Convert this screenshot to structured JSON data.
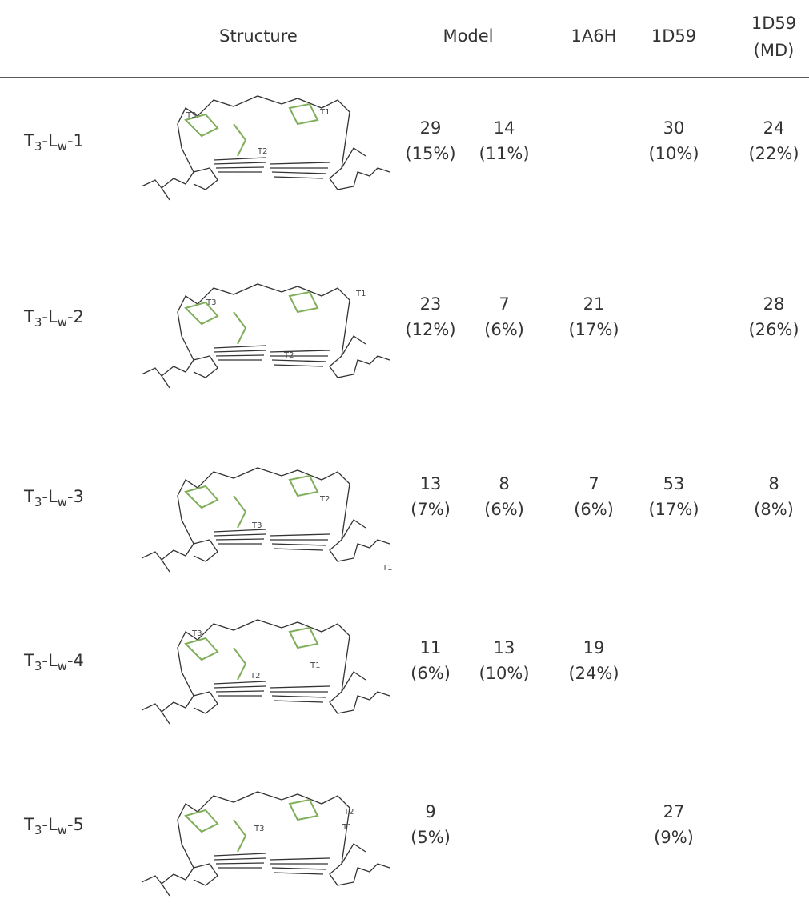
{
  "table": {
    "header": {
      "structure": "Structure",
      "model": "Model",
      "a6h": "1A6H",
      "d59": "1D59",
      "d59md": [
        "1D59",
        "(MD)"
      ]
    },
    "rows": [
      {
        "label": [
          "T",
          "3",
          "-L",
          "w",
          "-1"
        ],
        "annotations": [
          "T3",
          "T1",
          "T2"
        ],
        "cells": [
          {
            "count": 29,
            "pct": "(15%)"
          },
          {
            "count": 14,
            "pct": "(11%)"
          },
          null,
          {
            "count": 30,
            "pct": "(10%)"
          },
          {
            "count": 24,
            "pct": "(22%)"
          }
        ]
      },
      {
        "label": [
          "T",
          "3",
          "-L",
          "w",
          "-2"
        ],
        "annotations": [
          "T3",
          "T1",
          "T2"
        ],
        "cells": [
          {
            "count": 23,
            "pct": "(12%)"
          },
          {
            "count": 7,
            "pct": "(6%)"
          },
          {
            "count": 21,
            "pct": "(17%)"
          },
          null,
          {
            "count": 28,
            "pct": "(26%)"
          }
        ]
      },
      {
        "label": [
          "T",
          "3",
          "-L",
          "w",
          "-3"
        ],
        "annotations": [
          "T2",
          "T3",
          "T1"
        ],
        "cells": [
          {
            "count": 13,
            "pct": "(7%)"
          },
          {
            "count": 8,
            "pct": "(6%)"
          },
          {
            "count": 7,
            "pct": "(6%)"
          },
          {
            "count": 53,
            "pct": "(17%)"
          },
          {
            "count": 8,
            "pct": "(8%)"
          }
        ]
      },
      {
        "label": [
          "T",
          "3",
          "-L",
          "w",
          "-4"
        ],
        "annotations": [
          "T3",
          "T1",
          "T2"
        ],
        "cells": [
          {
            "count": 11,
            "pct": "(6%)"
          },
          {
            "count": 13,
            "pct": "(10%)"
          },
          {
            "count": 19,
            "pct": "(24%)"
          },
          null,
          null
        ]
      },
      {
        "label": [
          "T",
          "3",
          "-L",
          "w",
          "-5"
        ],
        "annotations": [
          "T2",
          "T3",
          "T1"
        ],
        "cells": [
          {
            "count": 9,
            "pct": "(5%)"
          },
          null,
          null,
          {
            "count": 27,
            "pct": "(9%)"
          },
          null
        ]
      }
    ]
  }
}
